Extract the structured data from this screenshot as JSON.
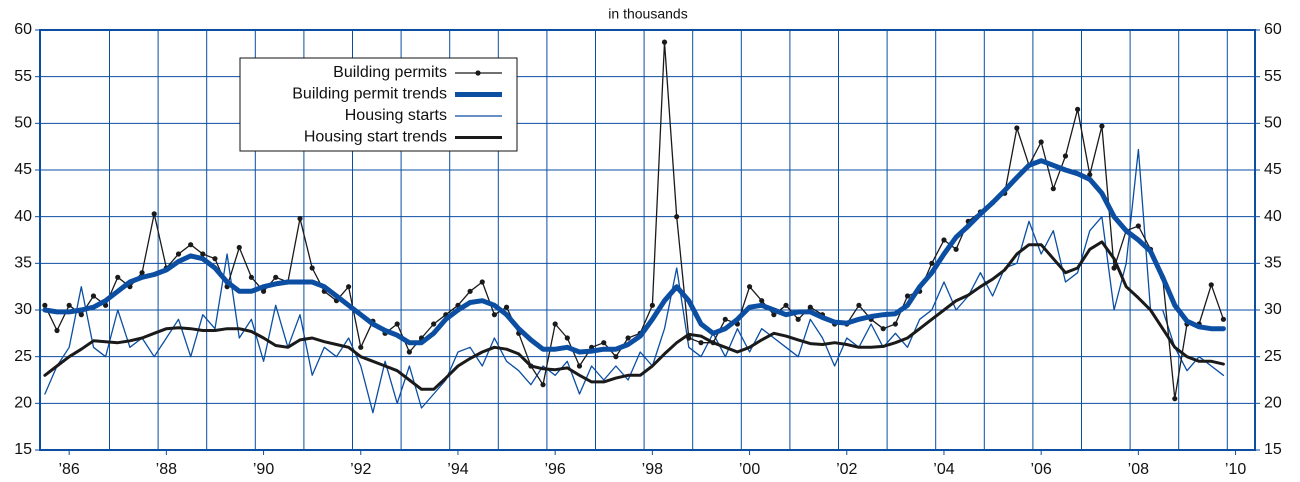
{
  "chart_data": {
    "type": "line",
    "title": "in thousands",
    "x": [
      1985.5,
      1985.75,
      1986,
      1986.25,
      1986.5,
      1986.75,
      1987,
      1987.25,
      1987.5,
      1987.75,
      1988,
      1988.25,
      1988.5,
      1988.75,
      1989,
      1989.25,
      1989.5,
      1989.75,
      1990,
      1990.25,
      1990.5,
      1990.75,
      1991,
      1991.25,
      1991.5,
      1991.75,
      1992,
      1992.25,
      1992.5,
      1992.75,
      1993,
      1993.25,
      1993.5,
      1993.75,
      1994,
      1994.25,
      1994.5,
      1994.75,
      1995,
      1995.25,
      1995.5,
      1995.75,
      1996,
      1996.25,
      1996.5,
      1996.75,
      1997,
      1997.25,
      1997.5,
      1997.75,
      1998,
      1998.25,
      1998.5,
      1998.75,
      1999,
      1999.25,
      1999.5,
      1999.75,
      2000,
      2000.25,
      2000.5,
      2000.75,
      2001,
      2001.25,
      2001.5,
      2001.75,
      2002,
      2002.25,
      2002.5,
      2002.75,
      2003,
      2003.25,
      2003.5,
      2003.75,
      2004,
      2004.25,
      2004.5,
      2004.75,
      2005,
      2005.25,
      2005.5,
      2005.75,
      2006,
      2006.25,
      2006.5,
      2006.75,
      2007,
      2007.25,
      2007.5,
      2007.75,
      2008,
      2008.25,
      2008.5,
      2008.75,
      2009,
      2009.25,
      2009.5,
      2009.75
    ],
    "series": [
      {
        "name": "Building permits",
        "color": "#1a1a1a",
        "line_width": 1.3,
        "marker": true,
        "values": [
          30.5,
          27.8,
          30.5,
          29.5,
          31.5,
          30.5,
          33.5,
          32.5,
          34,
          40.3,
          34.5,
          36,
          37,
          36,
          35.5,
          32.5,
          36.7,
          33.5,
          32,
          33.5,
          33,
          39.8,
          34.5,
          32,
          31,
          32.5,
          26,
          28.8,
          27.5,
          28.5,
          25.5,
          27,
          28.5,
          29.5,
          30.5,
          32,
          33,
          29.5,
          30.3,
          27.5,
          24,
          22,
          28.5,
          27,
          24,
          26,
          26.5,
          25,
          27,
          27.5,
          30.5,
          58.7,
          40,
          27,
          26.5,
          26.5,
          29,
          28.5,
          32.5,
          31,
          29.5,
          30.5,
          29,
          30.3,
          29.5,
          28.5,
          28.5,
          30.5,
          29,
          28,
          28.5,
          31.5,
          32,
          35,
          37.5,
          36.5,
          39.5,
          40.5,
          41.5,
          42.5,
          49.5,
          45.5,
          48,
          43,
          46.5,
          51.5,
          44.5,
          49.7,
          34.5,
          38.5,
          39,
          36.5,
          33.5,
          20.5,
          28.5,
          28.5,
          32.7,
          29
        ]
      },
      {
        "name": "Building permit trends",
        "color": "#0b4ea2",
        "line_width": 5,
        "marker": false,
        "values": [
          30,
          29.8,
          29.8,
          30,
          30.3,
          31,
          32,
          33,
          33.5,
          33.8,
          34.3,
          35.2,
          35.8,
          35.5,
          34.5,
          33,
          32,
          32,
          32.5,
          32.8,
          33,
          33,
          33,
          32.5,
          31.5,
          30.5,
          29.5,
          28.5,
          27.8,
          27.3,
          26.5,
          26.5,
          27.5,
          29,
          30,
          30.8,
          31,
          30.5,
          29.5,
          28,
          26.8,
          25.8,
          25.8,
          26,
          25.5,
          25.6,
          25.8,
          25.8,
          26.3,
          27.2,
          29,
          31,
          32.5,
          31,
          28.5,
          27.5,
          28,
          29,
          30.3,
          30.5,
          30,
          29.5,
          29.8,
          29.8,
          29.2,
          28.7,
          28.6,
          29,
          29.3,
          29.5,
          29.6,
          30.5,
          32.5,
          34,
          36,
          37.8,
          39,
          40.3,
          41.5,
          42.8,
          44.2,
          45.5,
          46,
          45.5,
          45,
          44.6,
          44,
          42.5,
          40,
          38.5,
          37.5,
          36.3,
          33.5,
          30.5,
          28.8,
          28.2,
          28,
          28
        ]
      },
      {
        "name": "Housing starts",
        "color": "#0b4ea2",
        "line_width": 1.3,
        "marker": false,
        "values": [
          21,
          24,
          26,
          32.5,
          26,
          25,
          30,
          26,
          27,
          25,
          27,
          29,
          25,
          29.5,
          28,
          36,
          27,
          29,
          24.5,
          30.5,
          26,
          29.5,
          23,
          26,
          25,
          27,
          24,
          19,
          24.5,
          20,
          24,
          19.5,
          21,
          22.5,
          25.5,
          26,
          24,
          27,
          24.5,
          23.5,
          22,
          24,
          23,
          24.5,
          21,
          24,
          22.5,
          24,
          22.5,
          25.5,
          24,
          28,
          34.5,
          26,
          25,
          27.5,
          25,
          28,
          25.5,
          28,
          27,
          26,
          25,
          29,
          27,
          24,
          27,
          26,
          28.5,
          26,
          27.5,
          26,
          29,
          30,
          33,
          30,
          31.5,
          34,
          31.5,
          34.5,
          35,
          39.5,
          36,
          38.5,
          33,
          34,
          38.5,
          40,
          30,
          35,
          47.2,
          30,
          30,
          26,
          23.5,
          25,
          24,
          23
        ]
      },
      {
        "name": "Housing start trends",
        "color": "#1a1a1a",
        "line_width": 3,
        "marker": false,
        "values": [
          23,
          24,
          25,
          25.8,
          26.7,
          26.6,
          26.5,
          26.7,
          27,
          27.5,
          28,
          28.1,
          28,
          27.8,
          27.8,
          28,
          28,
          27.7,
          27,
          26.2,
          26,
          26.8,
          27,
          26.6,
          26.3,
          26,
          25,
          24.5,
          24,
          23.5,
          22.5,
          21.5,
          21.5,
          22.7,
          24,
          24.8,
          25.5,
          26,
          25.8,
          25.3,
          24,
          23.7,
          23.6,
          23.8,
          23,
          22.3,
          22.3,
          22.7,
          23,
          23,
          24,
          25.3,
          26.5,
          27.4,
          27.2,
          26.5,
          26,
          25.5,
          26,
          26.8,
          27.5,
          27.2,
          26.8,
          26.4,
          26.3,
          26.5,
          26.3,
          26,
          26,
          26.1,
          26.5,
          27,
          28,
          29,
          30,
          31,
          31.6,
          32.5,
          33.3,
          34.3,
          36,
          37,
          37,
          35.5,
          34,
          34.5,
          36.5,
          37.3,
          35.5,
          32.5,
          31.3,
          30,
          28,
          26,
          25,
          24.5,
          24.5,
          24.2
        ]
      }
    ],
    "xlim": [
      1985.4,
      2010.4
    ],
    "xticks": [
      {
        "value": 1986,
        "label": "’86"
      },
      {
        "value": 1988,
        "label": "’88"
      },
      {
        "value": 1990,
        "label": "’90"
      },
      {
        "value": 1992,
        "label": "’92"
      },
      {
        "value": 1994,
        "label": "’94"
      },
      {
        "value": 1996,
        "label": "’96"
      },
      {
        "value": 1998,
        "label": "’98"
      },
      {
        "value": 2000,
        "label": "’00"
      },
      {
        "value": 2002,
        "label": "’02"
      },
      {
        "value": 2004,
        "label": "’04"
      },
      {
        "value": 2006,
        "label": "’06"
      },
      {
        "value": 2008,
        "label": "’08"
      },
      {
        "value": 2010,
        "label": "’10"
      }
    ],
    "xgrid": [
      1986.83,
      1987.83,
      1988.83,
      1989.83,
      1990.83,
      1991.83,
      1992.83,
      1993.83,
      1994.83,
      1995.83,
      1996.83,
      1997.83,
      1998.83,
      1999.83,
      2000.83,
      2001.83,
      2002.83,
      2003.83,
      2004.83,
      2005.83,
      2006.83,
      2007.83,
      2008.83,
      2009.83
    ],
    "ylim": [
      15,
      60
    ],
    "yticks": [
      15,
      20,
      25,
      30,
      35,
      40,
      45,
      50,
      55,
      60
    ],
    "grid": true,
    "right_axis": true,
    "legend": "upper left",
    "frame_color": "#0b4ea2"
  }
}
